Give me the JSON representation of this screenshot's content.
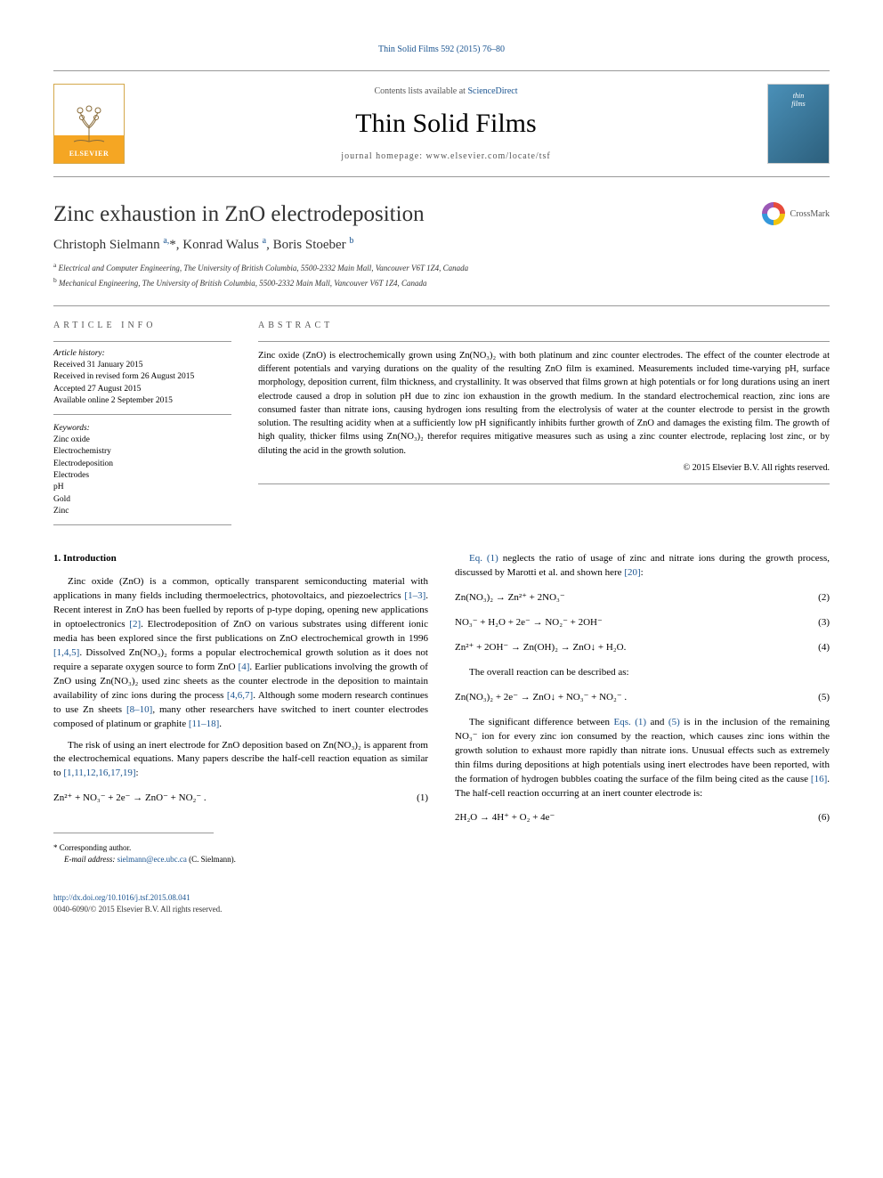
{
  "top_link": "Thin Solid Films 592 (2015) 76–80",
  "header": {
    "contents_prefix": "Contents lists available at ",
    "contents_link": "ScienceDirect",
    "journal_name": "Thin Solid Films",
    "homepage_prefix": "journal homepage: ",
    "homepage_url": "www.elsevier.com/locate/tsf",
    "elsevier_label": "ELSEVIER",
    "cover_line1": "thin",
    "cover_line2": "films"
  },
  "crossmark_label": "CrossMark",
  "title": "Zinc exhaustion in ZnO electrodeposition",
  "authors_html": "Christoph Sielmann <sup>a,</sup>*, Konrad Walus <sup>a</sup>, Boris Stoeber <sup>b</sup>",
  "affiliations": {
    "a": "Electrical and Computer Engineering, The University of British Columbia, 5500-2332 Main Mall, Vancouver V6T 1Z4, Canada",
    "b": "Mechanical Engineering, The University of British Columbia, 5500-2332 Main Mall, Vancouver V6T 1Z4, Canada"
  },
  "article_info": {
    "heading": "ARTICLE INFO",
    "history_label": "Article history:",
    "history": [
      "Received 31 January 2015",
      "Received in revised form 26 August 2015",
      "Accepted 27 August 2015",
      "Available online 2 September 2015"
    ],
    "keywords_label": "Keywords:",
    "keywords": [
      "Zinc oxide",
      "Electrochemistry",
      "Electrodeposition",
      "Electrodes",
      "pH",
      "Gold",
      "Zinc"
    ]
  },
  "abstract": {
    "heading": "ABSTRACT",
    "text": "Zinc oxide (ZnO) is electrochemically grown using Zn(NO₃)₂ with both platinum and zinc counter electrodes. The effect of the counter electrode at different potentials and varying durations on the quality of the resulting ZnO film is examined. Measurements included time-varying pH, surface morphology, deposition current, film thickness, and crystallinity. It was observed that films grown at high potentials or for long durations using an inert electrode caused a drop in solution pH due to zinc ion exhaustion in the growth medium. In the standard electrochemical reaction, zinc ions are consumed faster than nitrate ions, causing hydrogen ions resulting from the electrolysis of water at the counter electrode to persist in the growth solution. The resulting acidity when at a sufficiently low pH significantly inhibits further growth of ZnO and damages the existing film. The growth of high quality, thicker films using Zn(NO₃)₂ therefor requires mitigative measures such as using a zinc counter electrode, replacing lost zinc, or by diluting the acid in the growth solution.",
    "copyright": "© 2015 Elsevier B.V. All rights reserved."
  },
  "body": {
    "section1_heading": "1. Introduction",
    "col1_p1": "Zinc oxide (ZnO) is a common, optically transparent semiconducting material with applications in many fields including thermoelectrics, photovoltaics, and piezoelectrics [1–3]. Recent interest in ZnO has been fuelled by reports of p-type doping, opening new applications in optoelectronics [2]. Electrodeposition of ZnO on various substrates using different ionic media has been explored since the first publications on ZnO electrochemical growth in 1996 [1,4,5]. Dissolved Zn(NO₃)₂ forms a popular electrochemical growth solution as it does not require a separate oxygen source to form ZnO [4]. Earlier publications involving the growth of ZnO using Zn(NO₃)₂ used zinc sheets as the counter electrode in the deposition to maintain availability of zinc ions during the process [4,6,7]. Although some modern research continues to use Zn sheets [8–10], many other researchers have switched to inert counter electrodes composed of platinum or graphite [11–18].",
    "col1_p2": "The risk of using an inert electrode for ZnO deposition based on Zn(NO₃)₂ is apparent from the electrochemical equations. Many papers describe the half-cell reaction equation as similar to [1,11,12,16,17,19]:",
    "eq1": "Zn²⁺ + NO₃⁻ + 2e⁻ → ZnO⁻ + NO₂⁻ .",
    "eq1_num": "(1)",
    "col2_p1": "Eq. (1) neglects the ratio of usage of zinc and nitrate ions during the growth process, discussed by Marotti et al. and shown here [20]:",
    "eq2": "Zn(NO₃)₂ → Zn²⁺ + 2NO₃⁻",
    "eq2_num": "(2)",
    "eq3": "NO₃⁻ + H₂O + 2e⁻ → NO₂⁻ + 2OH⁻",
    "eq3_num": "(3)",
    "eq4": "Zn²⁺ + 2OH⁻ → Zn(OH)₂ → ZnO↓ + H₂O.",
    "eq4_num": "(4)",
    "col2_p2": "The overall reaction can be described as:",
    "eq5": "Zn(NO₃)₂ + 2e⁻ → ZnO↓ + NO₃⁻ + NO₂⁻ .",
    "eq5_num": "(5)",
    "col2_p3": "The significant difference between Eqs. (1) and (5) is in the inclusion of the remaining NO₃⁻ ion for every zinc ion consumed by the reaction, which causes zinc ions within the growth solution to exhaust more rapidly than nitrate ions. Unusual effects such as extremely thin films during depositions at high potentials using inert electrodes have been reported, with the formation of hydrogen bubbles coating the surface of the film being cited as the cause [16]. The half-cell reaction occurring at an inert counter electrode is:",
    "eq6": "2H₂O → 4H⁺ + O₂ + 4e⁻",
    "eq6_num": "(6)"
  },
  "footer": {
    "corresponding": "* Corresponding author.",
    "email_label": "E-mail address: ",
    "email": "sielmann@ece.ubc.ca",
    "email_suffix": " (C. Sielmann).",
    "doi": "http://dx.doi.org/10.1016/j.tsf.2015.08.041",
    "issn_rights": "0040-6090/© 2015 Elsevier B.V. All rights reserved."
  },
  "colors": {
    "link": "#1a5490",
    "rule": "#999999",
    "elsevier_orange": "#f5a623",
    "cover_grad_start": "#4a90b8",
    "cover_grad_end": "#2c5f7c"
  },
  "fonts": {
    "body_family": "Georgia, 'Times New Roman', serif",
    "title_size_pt": 25,
    "journal_size_pt": 30,
    "body_size_pt": 11,
    "abstract_size_pt": 10.5,
    "small_size_pt": 9
  }
}
